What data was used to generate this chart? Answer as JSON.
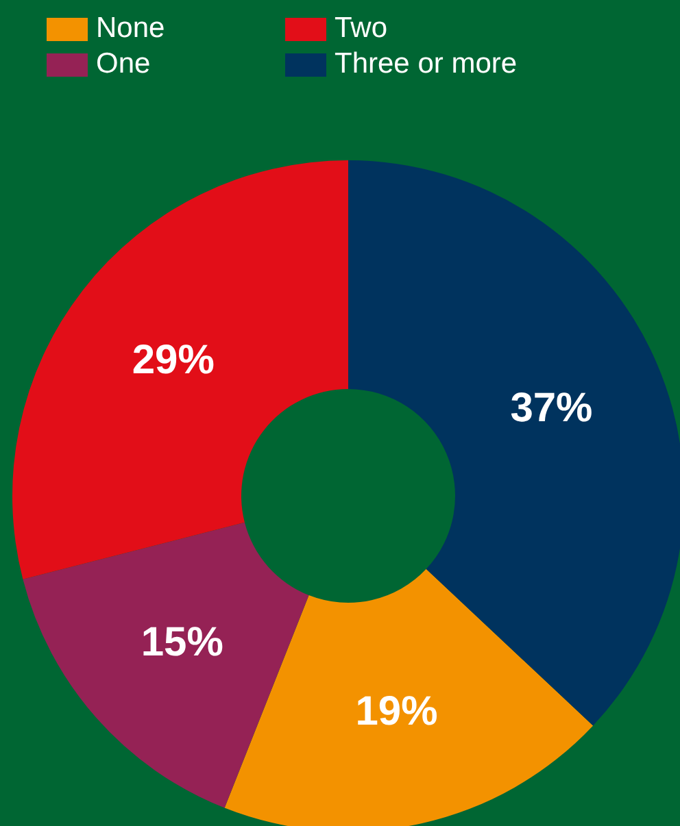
{
  "chart_data": {
    "type": "donut",
    "categories": [
      "None",
      "One",
      "Two",
      "Three or more"
    ],
    "values": [
      19,
      15,
      29,
      37
    ],
    "colors": [
      "#f39200",
      "#952255",
      "#e20e18",
      "#00335e"
    ],
    "value_labels": [
      "19%",
      "15%",
      "29%",
      "37%"
    ],
    "legend": "top left"
  }
}
